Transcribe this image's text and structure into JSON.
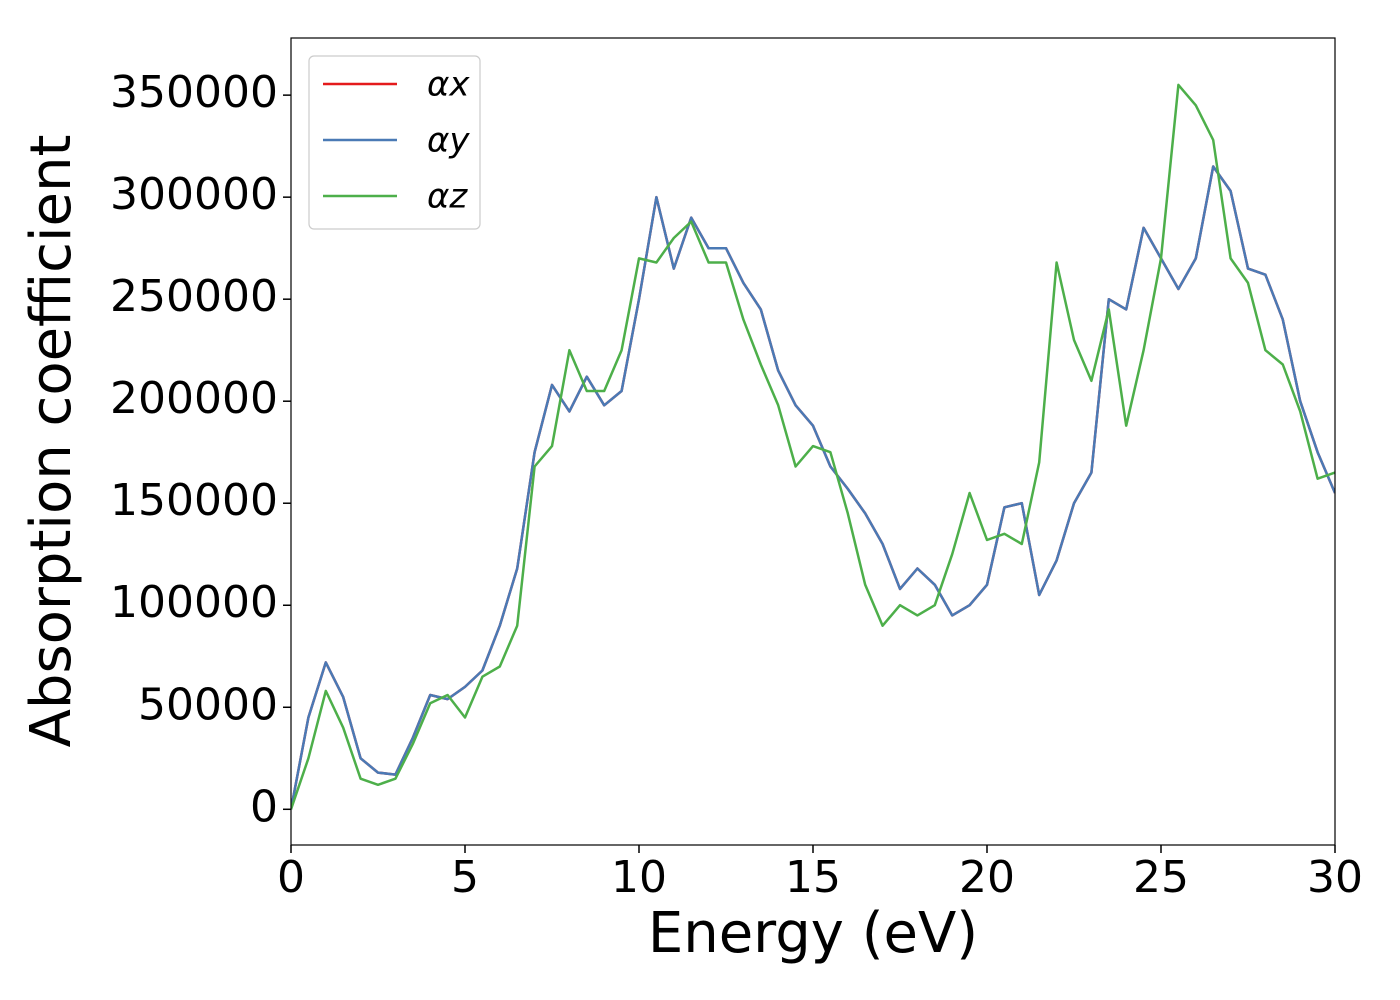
{
  "chart_data": {
    "type": "line",
    "xlabel": "Energy (eV)",
    "ylabel": "Absorption coefficient",
    "x": [
      0,
      0.5,
      1,
      1.5,
      2,
      2.5,
      3,
      3.5,
      4,
      4.5,
      5,
      5.5,
      6,
      6.5,
      7,
      7.5,
      8,
      8.5,
      9,
      9.5,
      10,
      10.5,
      11,
      11.5,
      12,
      12.5,
      13,
      13.5,
      14,
      14.5,
      15,
      15.5,
      16,
      16.5,
      17,
      17.5,
      18,
      18.5,
      19,
      19.5,
      20,
      20.5,
      21,
      21.5,
      22,
      22.5,
      23,
      23.5,
      24,
      24.5,
      25,
      25.5,
      26,
      26.5,
      27,
      27.5,
      28,
      28.5,
      29,
      29.5,
      30
    ],
    "series": [
      {
        "name": "αx",
        "color": "#e41a1c",
        "values": [
          0,
          45000,
          72000,
          55000,
          25000,
          18000,
          17000,
          35000,
          56000,
          54000,
          60000,
          68000,
          90000,
          118000,
          175000,
          208000,
          195000,
          212000,
          198000,
          205000,
          250000,
          300000,
          265000,
          290000,
          275000,
          275000,
          258000,
          245000,
          215000,
          198000,
          188000,
          168000,
          157000,
          145000,
          130000,
          108000,
          118000,
          110000,
          95000,
          100000,
          110000,
          148000,
          150000,
          105000,
          122000,
          150000,
          165000,
          250000,
          245000,
          285000,
          270000,
          255000,
          270000,
          315000,
          303000,
          265000,
          262000,
          240000,
          200000,
          175000,
          155000
        ]
      },
      {
        "name": "αy",
        "color": "#4a7ab5",
        "values": [
          0,
          45000,
          72000,
          55000,
          25000,
          18000,
          17000,
          35000,
          56000,
          54000,
          60000,
          68000,
          90000,
          118000,
          175000,
          208000,
          195000,
          212000,
          198000,
          205000,
          250000,
          300000,
          265000,
          290000,
          275000,
          275000,
          258000,
          245000,
          215000,
          198000,
          188000,
          168000,
          157000,
          145000,
          130000,
          108000,
          118000,
          110000,
          95000,
          100000,
          110000,
          148000,
          150000,
          105000,
          122000,
          150000,
          165000,
          250000,
          245000,
          285000,
          270000,
          255000,
          270000,
          315000,
          303000,
          265000,
          262000,
          240000,
          200000,
          175000,
          155000
        ]
      },
      {
        "name": "αz",
        "color": "#4daf4a",
        "values": [
          0,
          25000,
          58000,
          40000,
          15000,
          12000,
          15000,
          32000,
          52000,
          56000,
          45000,
          65000,
          70000,
          90000,
          168000,
          178000,
          225000,
          205000,
          205000,
          225000,
          270000,
          268000,
          280000,
          288000,
          268000,
          268000,
          240000,
          218000,
          198000,
          168000,
          178000,
          175000,
          145000,
          110000,
          90000,
          100000,
          95000,
          100000,
          125000,
          155000,
          132000,
          135000,
          130000,
          170000,
          268000,
          230000,
          210000,
          245000,
          188000,
          225000,
          270000,
          355000,
          345000,
          328000,
          270000,
          258000,
          225000,
          218000,
          195000,
          162000,
          165000
        ]
      }
    ],
    "xlim": [
      0,
      30
    ],
    "xticks": [
      0,
      5,
      10,
      15,
      20,
      25,
      30
    ],
    "ylim": [
      -17500,
      378000
    ],
    "yticks": [
      0,
      50000,
      100000,
      150000,
      200000,
      250000,
      300000,
      350000
    ],
    "grid": false,
    "legend": "upper left"
  }
}
